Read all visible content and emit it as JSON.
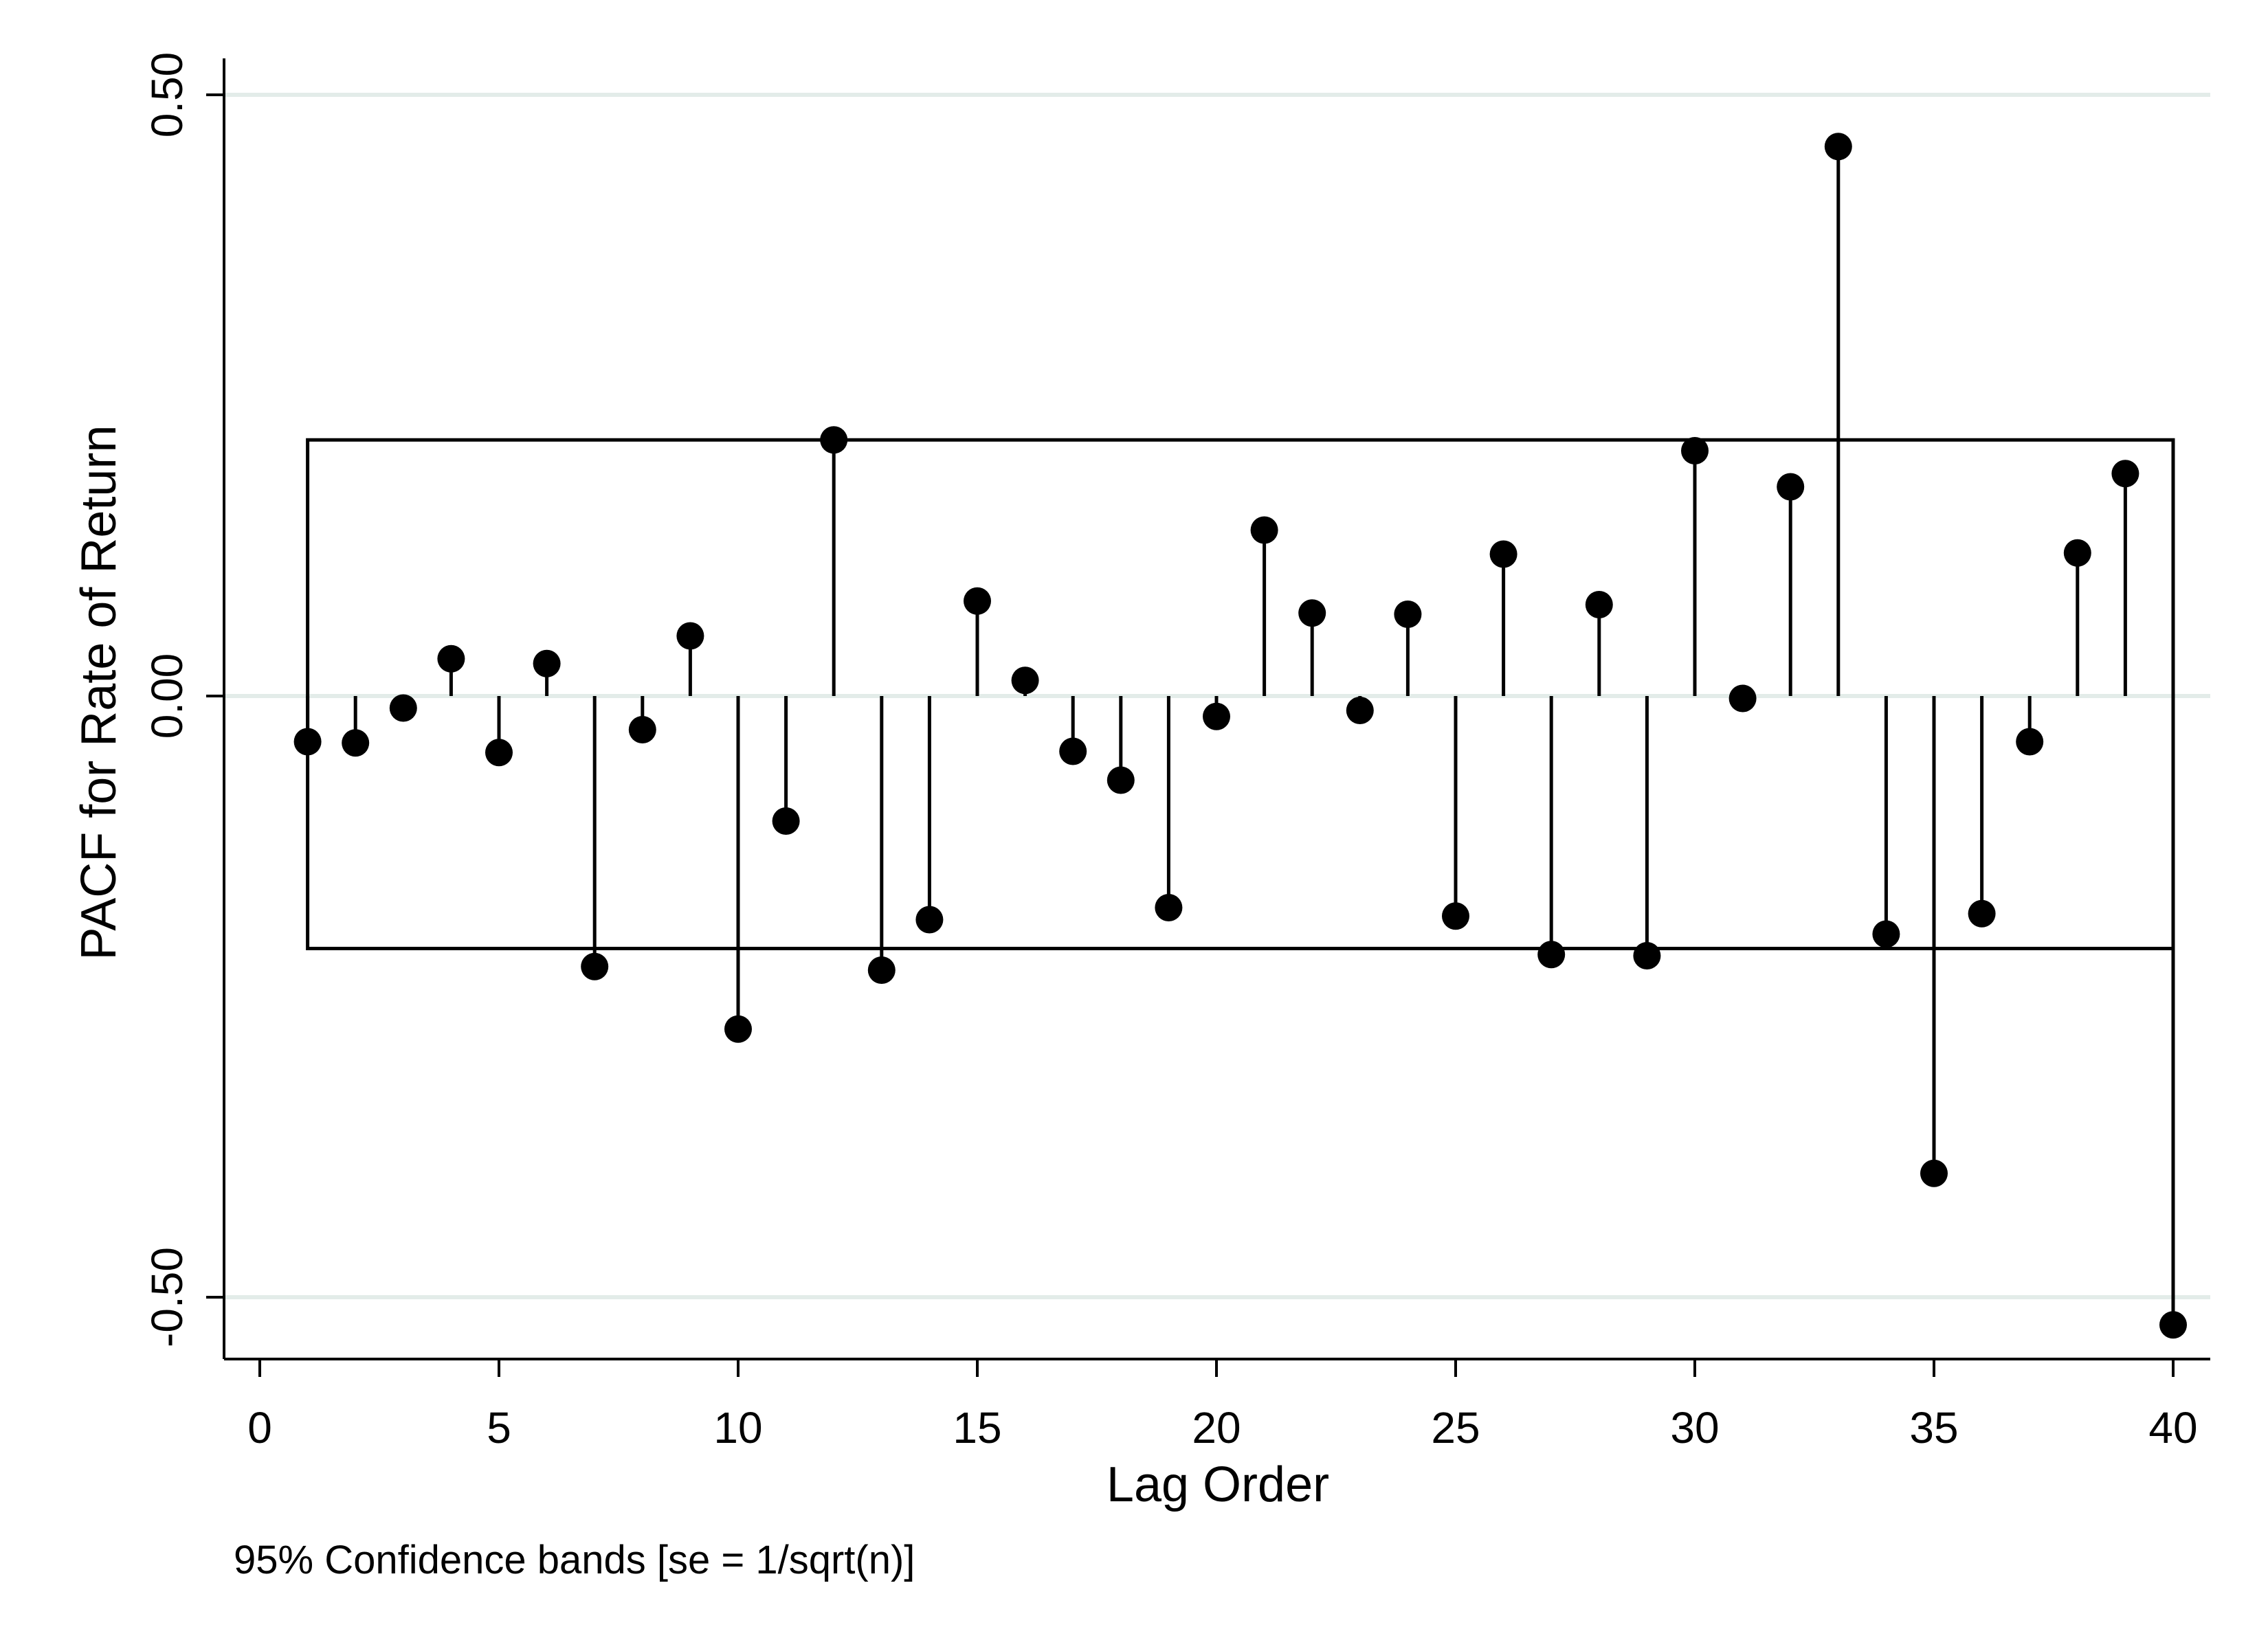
{
  "chart_data": {
    "type": "stem",
    "title": "",
    "xlabel": "Lag Order",
    "ylabel": "PACF for Rate of Return",
    "note": "95% Confidence bands [se = 1/sqrt(n)]",
    "xlim": [
      0,
      40
    ],
    "ylim": [
      -0.55,
      0.53
    ],
    "x_ticks": [
      0,
      5,
      10,
      15,
      20,
      25,
      30,
      35,
      40
    ],
    "y_ticks": [
      -0.5,
      0.0,
      0.5
    ],
    "y_tick_labels": [
      "-0.50",
      "0.00",
      "0.50"
    ],
    "gridlines": "horizontal at y ticks",
    "confidence_band": {
      "lower": -0.21,
      "upper": 0.213,
      "from_lag": 1,
      "to_lag": 40
    },
    "series": [
      {
        "name": "PACF",
        "x": [
          1,
          2,
          3,
          4,
          5,
          6,
          7,
          8,
          9,
          10,
          11,
          12,
          13,
          14,
          15,
          16,
          17,
          18,
          19,
          20,
          21,
          22,
          23,
          24,
          25,
          26,
          27,
          28,
          29,
          30,
          31,
          32,
          33,
          34,
          35,
          36,
          37,
          38,
          39,
          40
        ],
        "values": [
          -0.038,
          -0.039,
          -0.01,
          0.031,
          -0.047,
          0.027,
          -0.225,
          -0.028,
          0.05,
          -0.277,
          -0.104,
          0.213,
          -0.228,
          -0.186,
          0.079,
          0.013,
          -0.046,
          -0.07,
          -0.176,
          -0.017,
          0.138,
          0.069,
          -0.012,
          0.068,
          -0.183,
          0.118,
          -0.215,
          0.076,
          -0.216,
          0.204,
          -0.002,
          0.174,
          0.457,
          -0.198,
          -0.397,
          -0.181,
          -0.038,
          0.119,
          0.185,
          -0.523
        ]
      }
    ]
  }
}
